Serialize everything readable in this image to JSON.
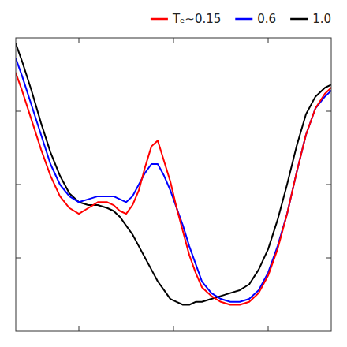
{
  "chart_data": {
    "type": "line",
    "x": [
      0.0,
      0.02,
      0.05,
      0.08,
      0.11,
      0.14,
      0.17,
      0.2,
      0.23,
      0.26,
      0.29,
      0.31,
      0.33,
      0.35,
      0.37,
      0.39,
      0.41,
      0.43,
      0.45,
      0.47,
      0.49,
      0.51,
      0.53,
      0.55,
      0.57,
      0.59,
      0.62,
      0.65,
      0.68,
      0.71,
      0.74,
      0.77,
      0.8,
      0.83,
      0.86,
      0.89,
      0.92,
      0.95,
      0.98,
      1.0
    ],
    "series": [
      {
        "name": "Tₑ∼0.15",
        "color": "#ff0000",
        "values": [
          0.88,
          0.82,
          0.72,
          0.62,
          0.53,
          0.46,
          0.42,
          0.4,
          0.42,
          0.44,
          0.44,
          0.43,
          0.41,
          0.4,
          0.43,
          0.48,
          0.56,
          0.63,
          0.65,
          0.58,
          0.51,
          0.42,
          0.34,
          0.26,
          0.2,
          0.15,
          0.12,
          0.1,
          0.09,
          0.09,
          0.1,
          0.13,
          0.19,
          0.28,
          0.4,
          0.54,
          0.67,
          0.76,
          0.81,
          0.83
        ]
      },
      {
        "name": "0.6",
        "color": "#0000ff",
        "values": [
          0.93,
          0.87,
          0.77,
          0.67,
          0.57,
          0.5,
          0.46,
          0.44,
          0.45,
          0.46,
          0.46,
          0.46,
          0.45,
          0.44,
          0.46,
          0.5,
          0.54,
          0.57,
          0.57,
          0.53,
          0.48,
          0.42,
          0.36,
          0.29,
          0.23,
          0.17,
          0.13,
          0.11,
          0.1,
          0.1,
          0.11,
          0.14,
          0.2,
          0.29,
          0.4,
          0.54,
          0.67,
          0.76,
          0.8,
          0.82
        ]
      },
      {
        "name": "1.0",
        "color": "#000000",
        "values": [
          0.98,
          0.92,
          0.82,
          0.71,
          0.61,
          0.53,
          0.47,
          0.44,
          0.43,
          0.43,
          0.42,
          0.41,
          0.39,
          0.36,
          0.33,
          0.29,
          0.25,
          0.21,
          0.17,
          0.14,
          0.11,
          0.1,
          0.09,
          0.09,
          0.1,
          0.1,
          0.11,
          0.12,
          0.13,
          0.14,
          0.16,
          0.21,
          0.28,
          0.38,
          0.5,
          0.63,
          0.74,
          0.8,
          0.83,
          0.84
        ]
      }
    ],
    "xlim": [
      0,
      1
    ],
    "ylim": [
      0,
      1
    ],
    "xticks": [
      0.2,
      0.5,
      0.8
    ],
    "yticks": [
      0.25,
      0.5,
      0.75
    ],
    "tick_labels": false,
    "legend": "upper right",
    "grid": false
  }
}
